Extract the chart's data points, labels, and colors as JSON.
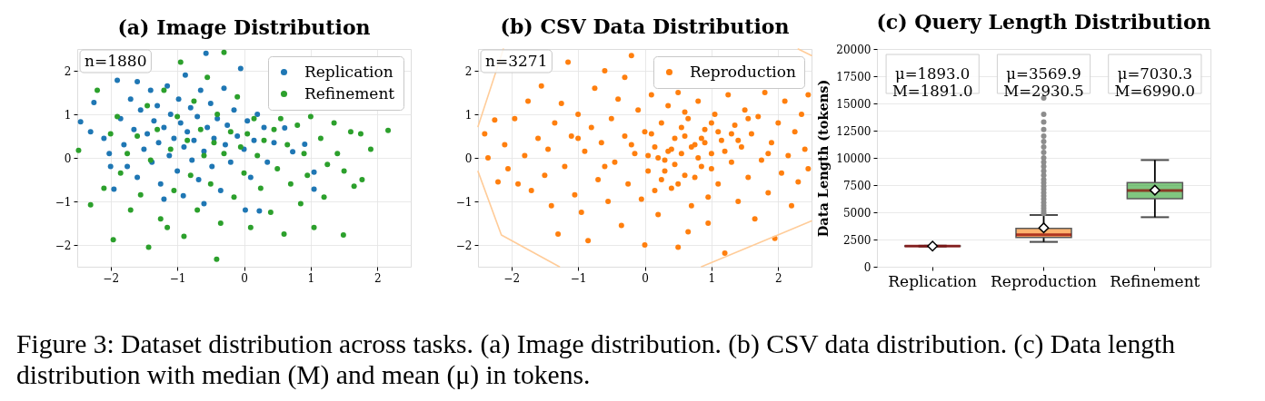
{
  "chart_data": [
    {
      "type": "scatter",
      "title": "(a) Image Distribution",
      "xlim": [
        -2.5,
        2.5
      ],
      "ylim": [
        -2.5,
        2.5
      ],
      "xticks": [
        -2,
        -1,
        0,
        1,
        2
      ],
      "yticks": [
        -2,
        -1,
        0,
        1,
        2
      ],
      "grid": true,
      "legend": "top right",
      "marker": "circle",
      "annotations": [
        "n=1880"
      ],
      "series": [
        {
          "name": "Replication",
          "color": "#1f77b4",
          "x": [
            -2.45,
            -2.3,
            -2.25,
            -2.02,
            -1.95,
            -1.9,
            -2.1,
            -1.85,
            -1.8,
            -1.75,
            -1.7,
            -1.65,
            -1.6,
            -1.55,
            -1.5,
            -1.45,
            -1.4,
            -1.38,
            -1.35,
            -1.3,
            -1.28,
            -1.25,
            -1.2,
            -1.15,
            -1.12,
            -1.1,
            -1.05,
            -1.0,
            -0.98,
            -0.95,
            -0.91,
            -0.9,
            -0.88,
            -0.85,
            -0.8,
            -0.78,
            -0.75,
            -0.7,
            -0.68,
            -0.65,
            -0.6,
            -0.57,
            -0.55,
            -0.5,
            -0.48,
            -0.45,
            -0.4,
            -0.35,
            -0.3,
            -0.28,
            -0.25,
            -0.2,
            -0.15,
            -0.1,
            -0.05,
            0.0,
            0.02,
            0.05,
            0.1,
            0.15,
            0.23,
            0.3,
            0.35,
            0.45,
            0.61,
            0.73,
            0.91,
            1.05,
            1.05,
            -1.6,
            -2.0,
            -1.2,
            -0.6,
            0.2
          ],
          "values": [
            0.83,
            0.6,
            1.27,
            0.1,
            -0.72,
            1.78,
            0.45,
            0.9,
            0.3,
            -0.2,
            1.35,
            0.65,
            -0.45,
            1.1,
            0.2,
            0.55,
            1.55,
            -0.1,
            0.85,
            1.2,
            0.35,
            -0.6,
            0.7,
            1.65,
            0.05,
            1.0,
            0.45,
            -0.3,
            1.35,
            0.8,
            -0.87,
            0.25,
            1.9,
            0.6,
            1.15,
            -0.05,
            0.4,
            0.95,
            -0.5,
            1.55,
            0.15,
            2.4,
            0.7,
            1.25,
            -0.2,
            0.45,
            0.9,
            -0.75,
            1.6,
            0.3,
            0.75,
            -0.1,
            1.1,
            0.5,
            2.05,
            0.2,
            -1.2,
            0.85,
            -0.45,
            0.4,
            -1.22,
            0.7,
            -0.1,
            0.35,
            0.69,
            0.14,
            0.31,
            -0.33,
            -0.72,
            1.75,
            -0.2,
            -0.95,
            -1.05,
            1.0
          ]
        },
        {
          "name": "Refinement",
          "color": "#2ca02c",
          "x": [
            -2.48,
            -2.3,
            -2.2,
            -2.1,
            -1.96,
            -1.9,
            -1.85,
            -1.75,
            -1.7,
            -1.6,
            -1.55,
            -1.45,
            -1.43,
            -1.4,
            -1.3,
            -1.25,
            -1.2,
            -1.1,
            -1.05,
            -1.0,
            -0.95,
            -0.9,
            -0.85,
            -0.8,
            -0.75,
            -0.7,
            -0.65,
            -0.6,
            -0.55,
            -0.5,
            -0.45,
            -0.41,
            -0.4,
            -0.35,
            -0.3,
            -0.3,
            -0.2,
            -0.15,
            -0.1,
            -0.05,
            0.0,
            0.05,
            0.1,
            0.15,
            0.2,
            0.25,
            0.3,
            0.4,
            0.45,
            0.5,
            0.55,
            0.6,
            0.65,
            0.7,
            0.8,
            0.85,
            0.9,
            0.95,
            1.0,
            1.05,
            1.15,
            1.2,
            1.25,
            1.35,
            1.4,
            1.49,
            1.5,
            1.6,
            1.65,
            1.75,
            1.77,
            1.9,
            2.16,
            -2.0,
            -1.15
          ],
          "values": [
            0.17,
            -1.08,
            1.55,
            -0.7,
            -1.88,
            0.95,
            -0.35,
            0.1,
            -1.2,
            0.5,
            -0.85,
            1.2,
            -2.05,
            -0.05,
            0.65,
            -1.4,
            1.55,
            0.2,
            -0.75,
            0.95,
            2.2,
            -1.8,
            0.4,
            -0.4,
            1.3,
            -1.2,
            0.65,
            0.05,
            1.85,
            -0.6,
            0.35,
            -2.33,
            1.0,
            -1.5,
            2.42,
            0.1,
            0.6,
            -0.9,
            1.4,
            0.25,
            -0.35,
            0.55,
            -1.6,
            0.9,
            0.05,
            -0.7,
            0.4,
            -1.25,
            0.65,
            -0.25,
            0.9,
            -1.75,
            0.3,
            -0.6,
            0.75,
            -1.05,
            0.1,
            -0.4,
            0.95,
            -1.6,
            0.45,
            -0.9,
            -0.15,
            0.8,
            0.1,
            -1.77,
            -0.3,
            0.6,
            -0.65,
            0.55,
            -0.5,
            0.2,
            0.63,
            0.55,
            -1.6
          ]
        }
      ]
    },
    {
      "type": "scatter",
      "title": "(b) CSV Data Distribution",
      "xlim": [
        -2.5,
        2.5
      ],
      "ylim": [
        -2.5,
        2.5
      ],
      "xticks": [
        -2,
        -1,
        0,
        1,
        2
      ],
      "yticks": [
        -2,
        -1,
        0,
        1,
        2
      ],
      "grid": true,
      "legend": "top right",
      "marker": "circle",
      "annotations": [
        "n=3271"
      ],
      "series": [
        {
          "name": "Reproduction",
          "color": "#ff7f0e",
          "x": [
            -2.4,
            -2.35,
            -2.25,
            -2.2,
            -2.1,
            -2.05,
            -1.95,
            -1.9,
            -1.8,
            -1.75,
            -1.7,
            -1.6,
            -1.55,
            -1.5,
            -1.45,
            -1.4,
            -1.35,
            -1.3,
            -1.25,
            -1.2,
            -1.15,
            -1.1,
            -1.05,
            -1.0,
            -0.95,
            -0.9,
            -0.85,
            -0.8,
            -0.75,
            -0.7,
            -0.65,
            -0.6,
            -0.55,
            -0.5,
            -0.45,
            -0.4,
            -0.35,
            -0.3,
            -0.25,
            -0.2,
            -0.15,
            -0.1,
            -0.05,
            0.0,
            0.0,
            0.05,
            0.1,
            0.15,
            0.2,
            0.25,
            0.3,
            0.35,
            0.4,
            0.45,
            0.5,
            0.5,
            0.55,
            0.6,
            0.65,
            0.7,
            0.75,
            0.8,
            0.85,
            0.9,
            0.95,
            1.0,
            1.05,
            1.1,
            1.15,
            1.2,
            1.25,
            1.3,
            1.35,
            1.4,
            1.45,
            1.5,
            1.55,
            1.6,
            1.65,
            1.7,
            1.75,
            1.8,
            1.85,
            1.9,
            1.95,
            2.0,
            2.05,
            2.1,
            2.15,
            2.2,
            2.25,
            2.3,
            2.35,
            2.4,
            2.45,
            0.2,
            0.4,
            0.6,
            0.8,
            1.0,
            0.3,
            0.7,
            0.9,
            0.1,
            1.2,
            0.5,
            -0.2,
            0.95,
            1.3,
            -0.6,
            0.6,
            1.55,
            -1.0,
            0.15,
            1.85,
            -0.3,
            0.65,
            2.45,
            0.35,
            0.75,
            1.1,
            0.05,
            1.4,
            0.55,
            0.25,
            0.85,
            1.0,
            0.45
          ],
          "values": [
            0.55,
            0.0,
            0.87,
            -0.55,
            0.3,
            -0.25,
            0.9,
            -0.6,
            0.05,
            1.3,
            -0.75,
            0.45,
            1.65,
            -0.4,
            0.2,
            -1.1,
            0.8,
            -1.75,
            1.25,
            -0.2,
            2.2,
            0.5,
            -0.85,
            1.0,
            -1.25,
            0.15,
            -1.9,
            0.7,
            1.6,
            -0.5,
            0.35,
            2.0,
            -1.0,
            0.9,
            -0.1,
            1.35,
            -1.55,
            0.5,
            -0.6,
            2.35,
            0.1,
            1.1,
            -0.95,
            0.6,
            -2.0,
            -0.3,
            1.45,
            0.25,
            -1.3,
            0.8,
            -0.05,
            1.2,
            -0.7,
            0.45,
            -2.05,
            1.5,
            0.1,
            -0.4,
            0.9,
            -1.1,
            0.3,
            1.3,
            -0.2,
            0.65,
            -1.5,
            0.1,
            1.0,
            -0.6,
            0.4,
            -2.19,
            1.45,
            -0.1,
            0.75,
            -1.0,
            0.25,
            1.1,
            -0.45,
            0.55,
            -1.4,
            0.95,
            -0.05,
            1.5,
            -0.8,
            0.35,
            -1.85,
            0.8,
            -0.35,
            1.3,
            0.05,
            -1.1,
            0.6,
            -0.55,
            1.0,
            0.2,
            -0.25,
            0.0,
            0.2,
            0.5,
            0.0,
            -0.25,
            -0.3,
            0.25,
            0.35,
            0.55,
            0.15,
            -0.6,
            0.3,
            -0.9,
            0.55,
            -0.2,
            1.05,
            0.9,
            0.45,
            -0.75,
            0.1,
            1.85,
            -1.7,
            1.45,
            0.15,
            -0.45,
            0.6,
            0.05,
            0.4,
            0.7,
            -0.5,
            0.45,
            0.8,
            -0.15
          ]
        },
        {
          "type": "line",
          "color": "#ffcc99",
          "line_style": "solid",
          "marker": "none",
          "x": [
            -2.12,
            -2.5
          ],
          "values": [
            2.5,
            0.72
          ]
        },
        {
          "type": "line",
          "color": "#ffcc99",
          "line_style": "solid",
          "marker": "none",
          "x": [
            -2.5,
            -2.15,
            -1.28
          ],
          "values": [
            -0.31,
            -1.77,
            -2.5
          ]
        },
        {
          "type": "line",
          "color": "#ffcc99",
          "line_style": "solid",
          "marker": "none",
          "x": [
            0.85,
            2.5
          ],
          "values": [
            -2.5,
            -1.45
          ]
        },
        {
          "type": "line",
          "color": "#ffcc99",
          "line_style": "solid",
          "marker": "none",
          "x": [
            2.3,
            2.5
          ],
          "values": [
            2.5,
            2.35
          ]
        }
      ]
    },
    {
      "type": "box",
      "title": "(c) Query Length Distribution",
      "ylabel": "Data Length (tokens)",
      "categories": [
        "Replication",
        "Reproduction",
        "Refinement"
      ],
      "ylim": [
        0,
        20000
      ],
      "yticks": [
        0,
        2500,
        5000,
        7500,
        10000,
        12500,
        15000,
        17500,
        20000
      ],
      "grid": "y",
      "colors": [
        "#1f77b4",
        "#ff7f0e",
        "#2ca02c"
      ],
      "boxes": [
        {
          "low": 1850,
          "q1": 1870,
          "median": 1891.0,
          "q3": 1910,
          "high": 1930,
          "mean": 1893.0
        },
        {
          "low": 2280,
          "q1": 2690,
          "median": 2930.5,
          "q3": 3530,
          "high": 4750,
          "mean": 3569.9,
          "outliers": [
            4900,
            5100,
            5350,
            5600,
            5900,
            6200,
            6500,
            6800,
            7100,
            7400,
            7700,
            8000,
            8400,
            8800,
            9200,
            9600,
            10000,
            10500,
            11000,
            11500,
            12000,
            12600,
            13300,
            14000,
            15500
          ]
        },
        {
          "low": 4550,
          "q1": 6250,
          "median": 6990.0,
          "q3": 7720,
          "high": 9800,
          "mean": 7030.3
        }
      ],
      "annotations": [
        "μ=1893.0\nM=1891.0",
        "μ=3569.9\nM=2930.5",
        "μ=7030.3\nM=6990.0"
      ]
    },
    {
      "type": "other",
      "annotations": [
        "Figure 3: Dataset distribution across tasks. (a) Image distribution. (b) CSV data distribution. (c) Data length distribution with median (M) and mean (μ) in tokens."
      ]
    }
  ]
}
